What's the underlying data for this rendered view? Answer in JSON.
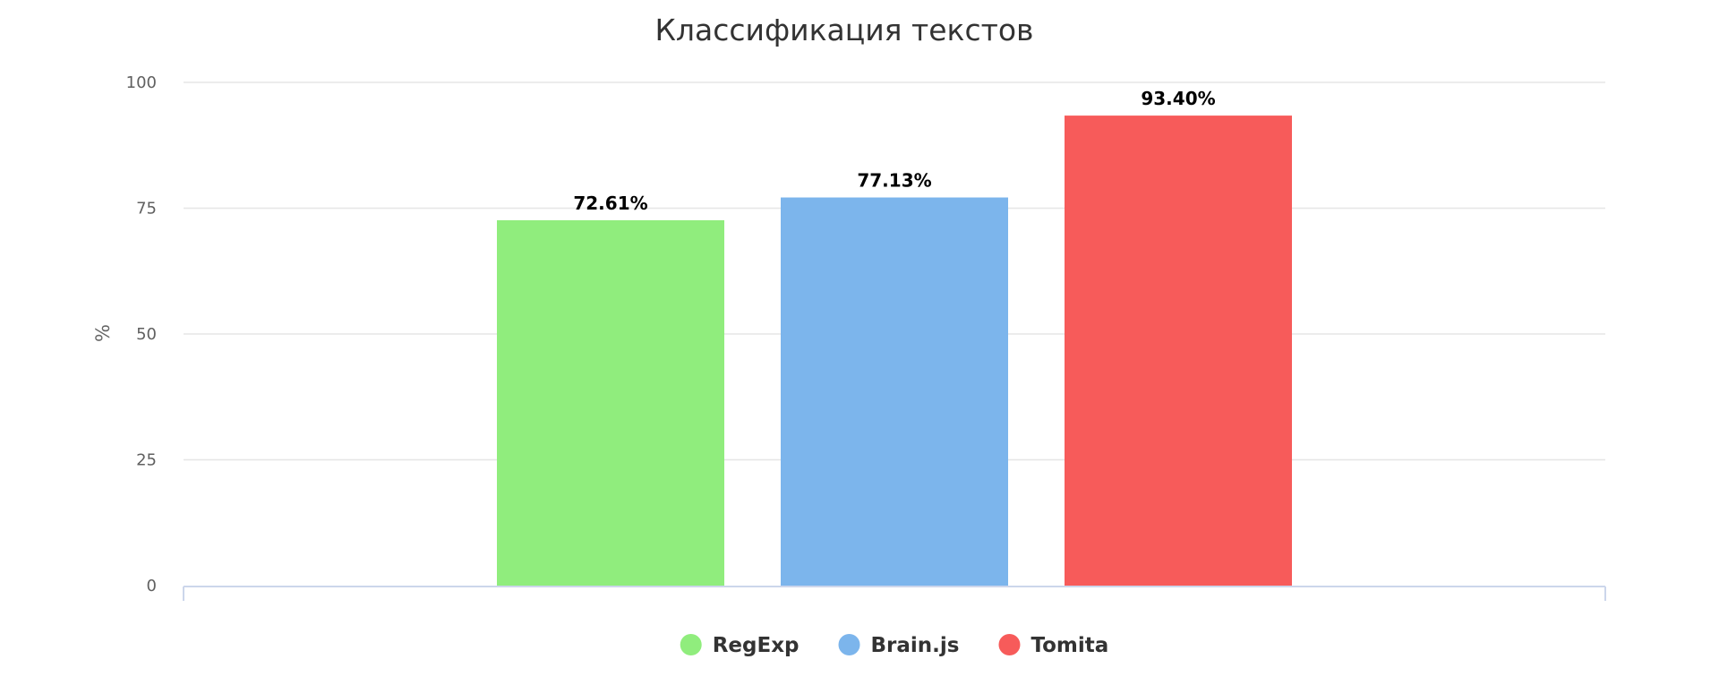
{
  "chart_data": {
    "type": "bar",
    "title": "Классификация текстов",
    "xlabel": "",
    "ylabel": "%",
    "ylim": [
      0,
      100
    ],
    "yticks": [
      0,
      25,
      50,
      75,
      100
    ],
    "grid": true,
    "legend_position": "bottom-center",
    "series": [
      {
        "name": "RegExp",
        "value": 72.61,
        "label": "72.61%",
        "color": "#90ed7d"
      },
      {
        "name": "Brain.js",
        "value": 77.13,
        "label": "77.13%",
        "color": "#7cb5ec"
      },
      {
        "name": "Tomita",
        "value": 93.4,
        "label": "93.40%",
        "color": "#f75b5a"
      }
    ]
  }
}
